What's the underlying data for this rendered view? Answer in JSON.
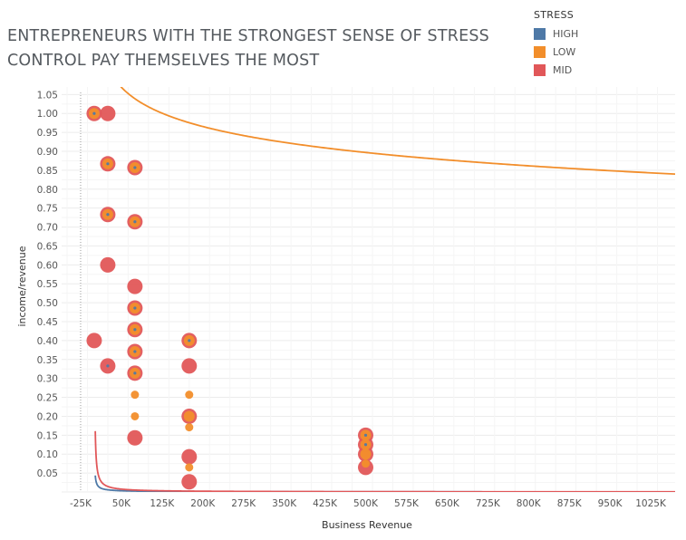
{
  "title": "ENTREPRENEURS WITH THE STRONGEST SENSE OF STRESS CONTROL PAY THEMSELVES THE MOST",
  "legend": {
    "title": "STRESS",
    "items": [
      {
        "label": "HIGH",
        "color": "#4e79a7"
      },
      {
        "label": "LOW",
        "color": "#f28e2b"
      },
      {
        "label": "MID",
        "color": "#e15759"
      }
    ]
  },
  "chart_data": {
    "type": "scatter",
    "xlabel": "Business Revenue",
    "ylabel": "income/revenue",
    "xlim": [
      -60000,
      1070000
    ],
    "ylim": [
      0,
      1.07
    ],
    "x_ticks": [
      {
        "value": -25000,
        "label": "-25K"
      },
      {
        "value": 50000,
        "label": "50K"
      },
      {
        "value": 125000,
        "label": "125K"
      },
      {
        "value": 200000,
        "label": "200K"
      },
      {
        "value": 275000,
        "label": "275K"
      },
      {
        "value": 350000,
        "label": "350K"
      },
      {
        "value": 425000,
        "label": "425K"
      },
      {
        "value": 500000,
        "label": "500K"
      },
      {
        "value": 575000,
        "label": "575K"
      },
      {
        "value": 650000,
        "label": "650K"
      },
      {
        "value": 725000,
        "label": "725K"
      },
      {
        "value": 800000,
        "label": "800K"
      },
      {
        "value": 875000,
        "label": "875K"
      },
      {
        "value": 950000,
        "label": "950K"
      },
      {
        "value": 1025000,
        "label": "1025K"
      }
    ],
    "y_ticks": [
      "0.05",
      "0.10",
      "0.15",
      "0.20",
      "0.25",
      "0.30",
      "0.35",
      "0.40",
      "0.45",
      "0.50",
      "0.55",
      "0.60",
      "0.65",
      "0.70",
      "0.75",
      "0.80",
      "0.85",
      "0.90",
      "0.95",
      "1.00",
      "1.05"
    ],
    "grid": true,
    "reference_line_x": -25000,
    "legend_position": "top-right",
    "series": [
      {
        "name": "MID",
        "color": "#e15759",
        "size": 8.5,
        "points": [
          [
            0,
            1.0
          ],
          [
            25000,
            1.0
          ],
          [
            25000,
            0.867
          ],
          [
            25000,
            0.733
          ],
          [
            25000,
            0.6
          ],
          [
            0,
            0.4
          ],
          [
            25000,
            0.333
          ],
          [
            75000,
            0.857
          ],
          [
            75000,
            0.714
          ],
          [
            75000,
            0.543
          ],
          [
            75000,
            0.486
          ],
          [
            75000,
            0.429
          ],
          [
            75000,
            0.371
          ],
          [
            75000,
            0.314
          ],
          [
            75000,
            0.143
          ],
          [
            175000,
            0.4
          ],
          [
            175000,
            0.333
          ],
          [
            175000,
            0.2
          ],
          [
            175000,
            0.093
          ],
          [
            175000,
            0.027
          ],
          [
            500000,
            0.15
          ],
          [
            500000,
            0.125
          ],
          [
            500000,
            0.1
          ],
          [
            500000,
            0.065
          ]
        ]
      },
      {
        "name": "LOW",
        "color": "#f28e2b",
        "size": 6.0,
        "points": [
          [
            0,
            1.0
          ],
          [
            25000,
            0.867
          ],
          [
            25000,
            0.733
          ],
          [
            75000,
            0.857
          ],
          [
            75000,
            0.714
          ],
          [
            75000,
            0.486
          ],
          [
            75000,
            0.429
          ],
          [
            75000,
            0.371
          ],
          [
            75000,
            0.314
          ],
          [
            175000,
            0.4
          ],
          [
            175000,
            0.2
          ],
          [
            500000,
            0.15
          ],
          [
            500000,
            0.125
          ],
          [
            500000,
            0.1
          ]
        ]
      },
      {
        "name": "LOW",
        "color": "#f28e2b",
        "size": 4.5,
        "points": [
          [
            75000,
            0.257
          ],
          [
            75000,
            0.2
          ],
          [
            175000,
            0.257
          ],
          [
            175000,
            0.171
          ],
          [
            175000,
            0.065
          ],
          [
            500000,
            0.075
          ]
        ]
      },
      {
        "name": "HIGH",
        "color": "#4e79a7",
        "size": 1.6,
        "points": [
          [
            0,
            1.0
          ],
          [
            25000,
            0.867
          ],
          [
            25000,
            0.733
          ],
          [
            25000,
            0.333
          ],
          [
            75000,
            0.857
          ],
          [
            75000,
            0.714
          ],
          [
            75000,
            0.486
          ],
          [
            75000,
            0.429
          ],
          [
            75000,
            0.371
          ],
          [
            75000,
            0.314
          ],
          [
            175000,
            0.4
          ],
          [
            500000,
            0.15
          ],
          [
            500000,
            0.125
          ]
        ]
      }
    ],
    "trend_lines": [
      {
        "name": "HIGH",
        "color": "#4e79a7",
        "model": "power",
        "a": 19.0,
        "b": 0.8
      },
      {
        "name": "LOW",
        "color": "#f28e2b",
        "model": "log",
        "a": 1.19,
        "b": 0.1725
      },
      {
        "name": "MID",
        "color": "#e15759",
        "model": "power",
        "a": 220.0,
        "b": 0.95
      }
    ]
  }
}
